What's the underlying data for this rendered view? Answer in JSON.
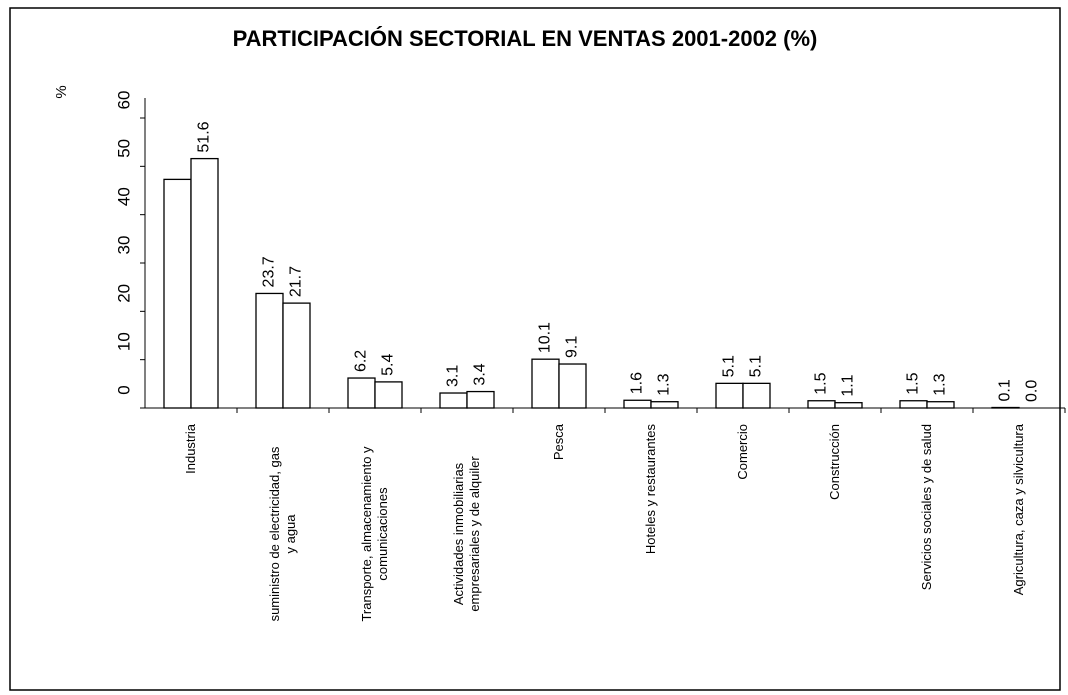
{
  "chart_data": {
    "type": "bar",
    "title": "PARTICIPACIÓN SECTORIAL EN VENTAS 2001-2002 (%)",
    "ylabel": "%",
    "categories": [
      "Industria",
      "suministro de electricidad, gas y agua",
      "Transporte, almacenamiento y comunicaciones",
      "Actividades inmobiliarias empresariales y de alquiler",
      "Pesca",
      "Hoteles y restaurantes",
      "Comercio",
      "Construcción",
      "Servicios sociales y de salud",
      "Agricultura, caza y silvicultura"
    ],
    "series": [
      {
        "color": "#ffffff",
        "values": [
          47.3,
          23.7,
          6.2,
          3.1,
          10.1,
          1.6,
          5.1,
          1.5,
          1.5,
          0.1
        ],
        "value_labels": [
          null,
          "23.7",
          "6.2",
          "3.1",
          "10.1",
          "1.6",
          "5.1",
          "1.5",
          "1.5",
          "0.1"
        ]
      },
      {
        "color": "#ffffff",
        "values": [
          51.6,
          21.7,
          5.4,
          3.4,
          9.1,
          1.3,
          5.1,
          1.1,
          1.3,
          0.0
        ],
        "value_labels": [
          "51.6",
          "21.7",
          "5.4",
          "3.4",
          "9.1",
          "1.3",
          "5.1",
          "1.1",
          "1.3",
          "0.0"
        ]
      }
    ],
    "ylim": [
      0,
      60
    ],
    "yticks": [
      0,
      10,
      20,
      30,
      40,
      50,
      60
    ],
    "grid": false
  }
}
